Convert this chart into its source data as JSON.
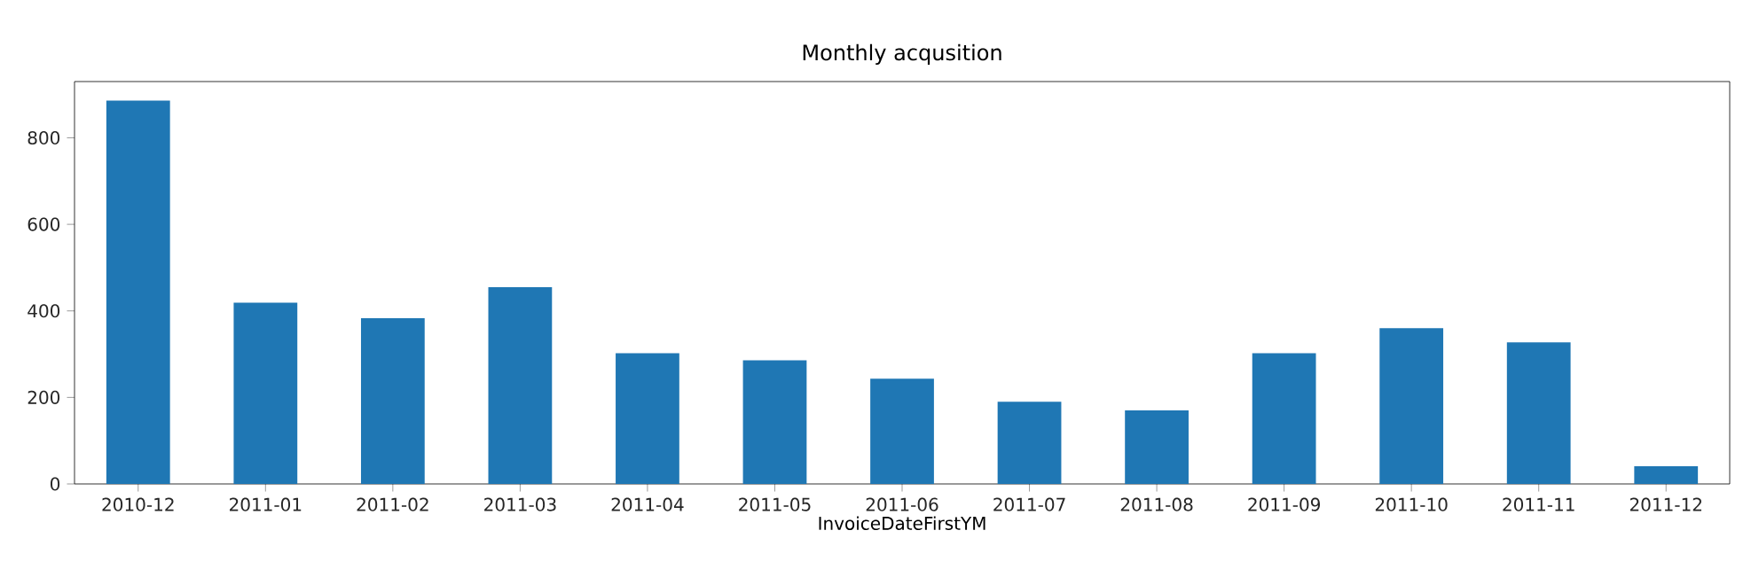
{
  "chart_data": {
    "type": "bar",
    "title": "Monthly acqusition",
    "xlabel": "InvoiceDateFirstYM",
    "categories": [
      "2010-12",
      "2011-01",
      "2011-02",
      "2011-03",
      "2011-04",
      "2011-05",
      "2011-06",
      "2011-07",
      "2011-08",
      "2011-09",
      "2011-10",
      "2011-11",
      "2011-12"
    ],
    "values": [
      886,
      419,
      383,
      455,
      302,
      286,
      243,
      190,
      170,
      302,
      360,
      327,
      41
    ],
    "color": "#1f77b4",
    "ylim": [
      0,
      930
    ],
    "yticks": [
      0,
      200,
      400,
      600,
      800
    ],
    "grid": false
  }
}
